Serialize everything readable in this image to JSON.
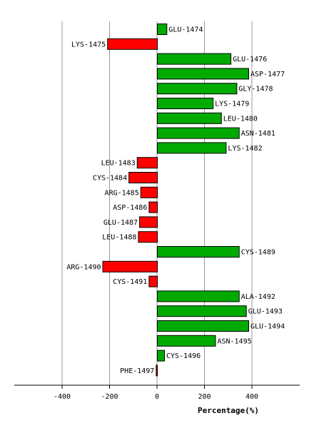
{
  "chart_data": {
    "type": "bar",
    "orientation": "horizontal",
    "title": "",
    "xlabel": "Percentage(%)",
    "ylabel": "",
    "xlim": [
      -600,
      600
    ],
    "xticks": [
      -400,
      -200,
      0,
      200,
      400
    ],
    "xtick_labels": [
      "-400",
      "-200",
      "0",
      "200",
      "400"
    ],
    "grid": "vertical",
    "positive_color": "#00aa00",
    "negative_color": "#ff0000",
    "categories": [
      "GLU-1474",
      "LYS-1475",
      "GLU-1476",
      "ASP-1477",
      "GLY-1478",
      "LYS-1479",
      "LEU-1480",
      "ASN-1481",
      "LYS-1482",
      "LEU-1483",
      "CYS-1484",
      "ARG-1485",
      "ASP-1486",
      "GLU-1487",
      "LEU-1488",
      "CYS-1489",
      "ARG-1490",
      "CYS-1491",
      "ALA-1492",
      "GLU-1493",
      "GLU-1494",
      "ASN-1495",
      "CYS-1496",
      "PHE-1497"
    ],
    "values": [
      40,
      -210,
      310,
      385,
      335,
      235,
      270,
      345,
      290,
      -85,
      -120,
      -70,
      -35,
      -75,
      -80,
      345,
      -230,
      -35,
      345,
      375,
      385,
      245,
      30,
      -5
    ]
  }
}
